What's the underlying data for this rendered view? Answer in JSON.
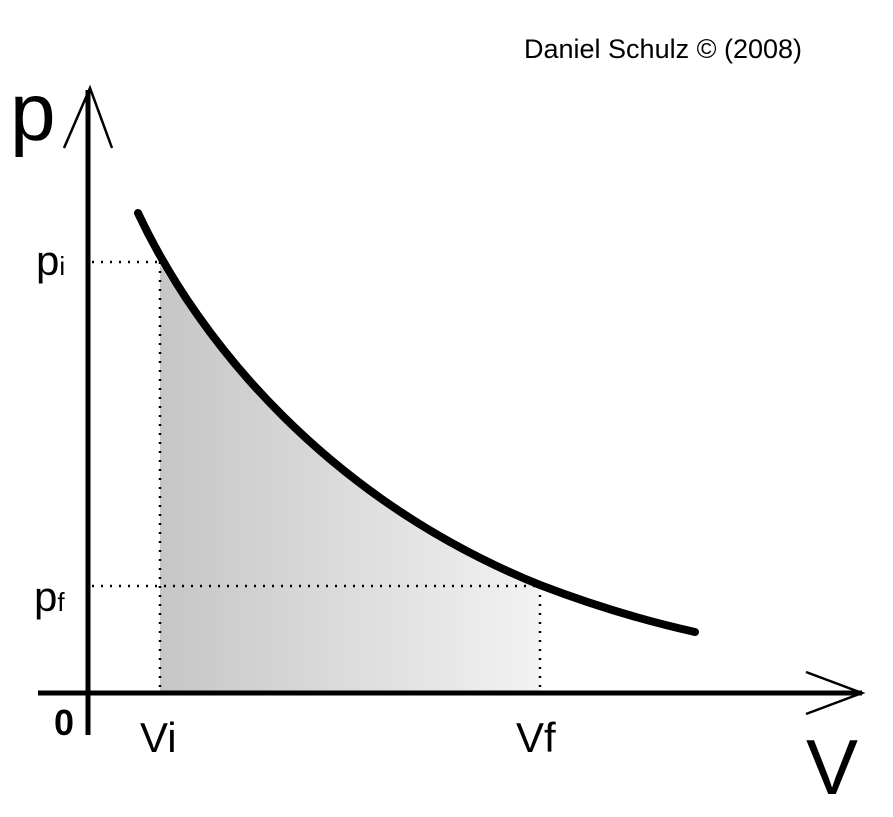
{
  "credit": "Daniel Schulz © (2008)",
  "axes": {
    "y_label": "p",
    "x_label": "V",
    "origin_label": "0"
  },
  "markers": {
    "p_initial": {
      "base": "p",
      "sub": "i"
    },
    "p_final": {
      "base": "p",
      "sub": "f"
    },
    "v_initial": "Vi",
    "v_final": "Vf"
  },
  "colors": {
    "curve": "#000000",
    "area_fill_dark": "#c8c8c8",
    "area_fill_light": "#f0f0f0",
    "guide_lines": "#000000"
  }
}
